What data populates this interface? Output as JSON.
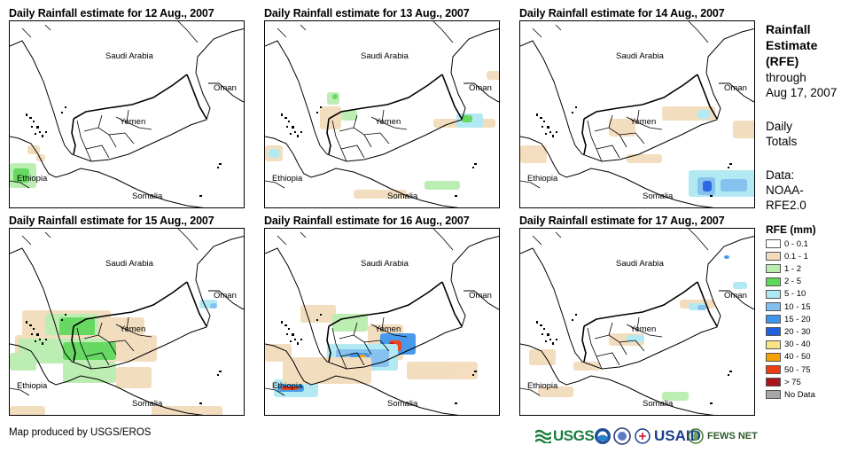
{
  "panels": [
    {
      "title": "Daily Rainfall estimate for 12 Aug., 2007"
    },
    {
      "title": "Daily Rainfall estimate for 13 Aug., 2007"
    },
    {
      "title": "Daily Rainfall estimate for 14 Aug., 2007"
    },
    {
      "title": "Daily Rainfall estimate for 15 Aug., 2007"
    },
    {
      "title": "Daily Rainfall estimate for 16 Aug., 2007"
    },
    {
      "title": "Daily Rainfall estimate for 17 Aug., 2007"
    }
  ],
  "map_labels": {
    "saudi": "Saudi Arabia",
    "oman": "Oman",
    "yemen": "Yemen",
    "ethiopia": "Ethiopia",
    "somalia": "Somalia"
  },
  "side": {
    "title_line1": "Rainfall",
    "title_line2": "Estimate",
    "title_line3": "(RFE)",
    "through": "through",
    "date": "Aug 17, 2007",
    "daily": "Daily",
    "totals": "Totals",
    "data_label": "Data:",
    "source1": "NOAA-",
    "source2": "RFE2.0"
  },
  "legend": {
    "title": "RFE (mm)",
    "items": [
      {
        "label": "0 - 0.1",
        "color": "#ffffff"
      },
      {
        "label": "0.1 - 1",
        "color": "#f3dcbc"
      },
      {
        "label": "1 - 2",
        "color": "#b9eeb0"
      },
      {
        "label": "2 - 5",
        "color": "#5fd85a"
      },
      {
        "label": "5 - 10",
        "color": "#aee8f2"
      },
      {
        "label": "10 - 15",
        "color": "#80bff0"
      },
      {
        "label": "15 - 20",
        "color": "#3f95ec"
      },
      {
        "label": "20 - 30",
        "color": "#1f5fe0"
      },
      {
        "label": "30 - 40",
        "color": "#fbe38a"
      },
      {
        "label": "40 - 50",
        "color": "#f5a000"
      },
      {
        "label": "50 - 75",
        "color": "#f03a10"
      },
      {
        "label": "> 75",
        "color": "#a8151b"
      },
      {
        "label": "No Data",
        "color": "#a6a6a6"
      }
    ]
  },
  "credit": "Map produced by USGS/EROS",
  "logos": {
    "usgs": "USGS",
    "usaid": "USAID",
    "fews": "FEWS NET"
  }
}
